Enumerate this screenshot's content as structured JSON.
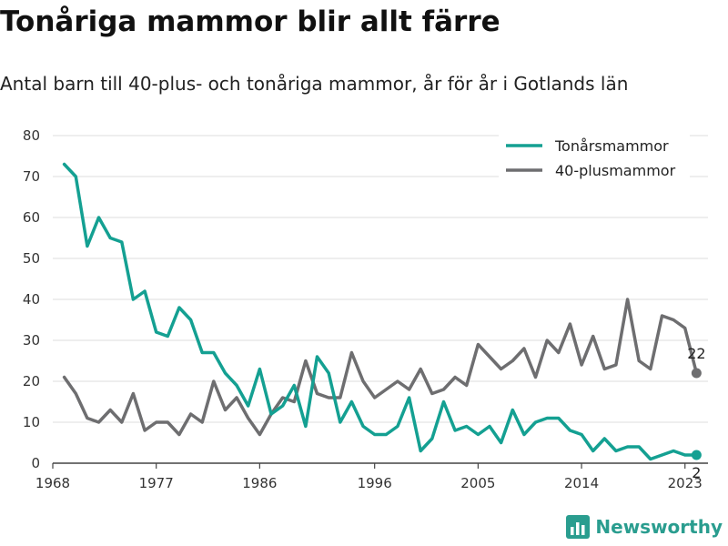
{
  "title": "Tonåriga mammor blir allt färre",
  "subtitle": "Antal barn till 40-plus- och tonåriga mammor, år för år i Gotlands län",
  "brand": "Newsworthy",
  "colors": {
    "teen": "#14a092",
    "plus40": "#6e6e70",
    "grid": "#dcdcdc",
    "axis": "#444444"
  },
  "chart_data": {
    "type": "line",
    "x": [
      1969,
      1970,
      1971,
      1972,
      1973,
      1974,
      1975,
      1976,
      1977,
      1978,
      1979,
      1980,
      1981,
      1982,
      1983,
      1984,
      1985,
      1986,
      1987,
      1988,
      1989,
      1990,
      1991,
      1992,
      1993,
      1994,
      1995,
      1996,
      1997,
      1998,
      1999,
      2000,
      2001,
      2002,
      2003,
      2004,
      2005,
      2006,
      2007,
      2008,
      2009,
      2010,
      2011,
      2012,
      2013,
      2014,
      2015,
      2016,
      2017,
      2018,
      2019,
      2020,
      2021,
      2022,
      2023,
      2024
    ],
    "series": [
      {
        "name": "Tonårsmammor",
        "color": "#14a092",
        "values": [
          73,
          70,
          53,
          60,
          55,
          54,
          40,
          42,
          32,
          31,
          38,
          35,
          27,
          27,
          22,
          19,
          14,
          23,
          12,
          14,
          19,
          9,
          26,
          22,
          10,
          15,
          9,
          7,
          7,
          9,
          16,
          3,
          6,
          15,
          8,
          9,
          7,
          9,
          5,
          13,
          7,
          10,
          11,
          11,
          8,
          7,
          3,
          6,
          3,
          4,
          4,
          1,
          2,
          3,
          2,
          2
        ]
      },
      {
        "name": "40-plusmammor",
        "color": "#6e6e70",
        "values": [
          21,
          17,
          11,
          10,
          13,
          10,
          17,
          8,
          10,
          10,
          7,
          12,
          10,
          20,
          13,
          16,
          11,
          7,
          12,
          16,
          15,
          25,
          17,
          16,
          16,
          27,
          20,
          16,
          18,
          20,
          18,
          23,
          17,
          18,
          21,
          19,
          29,
          26,
          23,
          25,
          28,
          21,
          30,
          27,
          34,
          24,
          31,
          23,
          24,
          40,
          25,
          23,
          36,
          35,
          33,
          22
        ]
      }
    ],
    "end_labels": [
      "22",
      "2"
    ],
    "xticks": [
      "1968",
      "1977",
      "1986",
      "1996",
      "2005",
      "2014",
      "2023"
    ],
    "xtick_values": [
      1968,
      1977,
      1986,
      1996,
      2005,
      2014,
      2023
    ],
    "yticks": [
      "0",
      "10",
      "20",
      "30",
      "40",
      "50",
      "60",
      "70",
      "80"
    ],
    "ylim": [
      0,
      80
    ],
    "xlim": [
      1968,
      2025
    ],
    "grid": true,
    "legend_position": "top-right"
  }
}
